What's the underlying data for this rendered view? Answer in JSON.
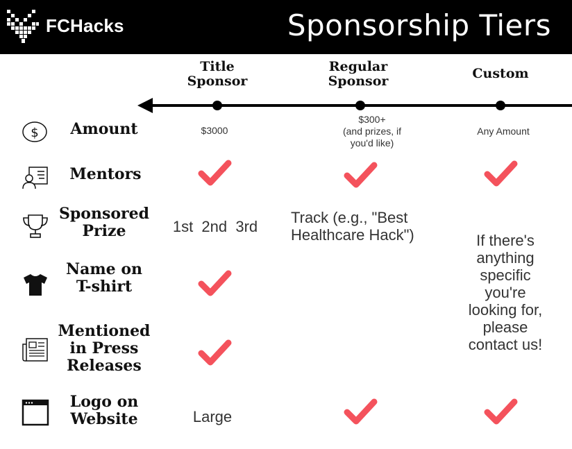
{
  "header": {
    "brand": "FCHacks",
    "title": "Sponsorship Tiers"
  },
  "tiers": {
    "title": [
      "Title",
      "Sponsor"
    ],
    "regular": [
      "Regular",
      "Sponsor"
    ],
    "custom": "Custom"
  },
  "rows": {
    "amount": {
      "label": "Amount",
      "title_value": "$3000",
      "regular_value": [
        "$300+",
        "(and prizes, if",
        "you'd like)"
      ],
      "custom_value": "Any Amount"
    },
    "mentors": {
      "label": "Mentors"
    },
    "prize": {
      "label": [
        "Sponsored",
        "Prize"
      ],
      "title_value": "1st  2nd  3rd",
      "regular_value": [
        "Track (e.g., \"Best",
        "Healthcare Hack\")"
      ]
    },
    "tshirt": {
      "label": [
        "Name on",
        "T-shirt"
      ]
    },
    "press": {
      "label": [
        "Mentioned",
        "in Press",
        "Releases"
      ]
    },
    "logo": {
      "label": [
        "Logo on",
        "Website"
      ],
      "title_value": "Large"
    }
  },
  "custom_note": [
    "If there's",
    "anything",
    "specific",
    "you're",
    "looking for,",
    "please",
    "contact us!"
  ],
  "colors": {
    "header_bg": "#000000",
    "check": "#f4525c",
    "text": "#222222"
  },
  "icons": [
    "logo-mark-icon",
    "dollar-icon",
    "mentor-icon",
    "trophy-icon",
    "tshirt-icon",
    "newspaper-icon",
    "browser-icon",
    "check-icon",
    "arrow-left-icon"
  ]
}
